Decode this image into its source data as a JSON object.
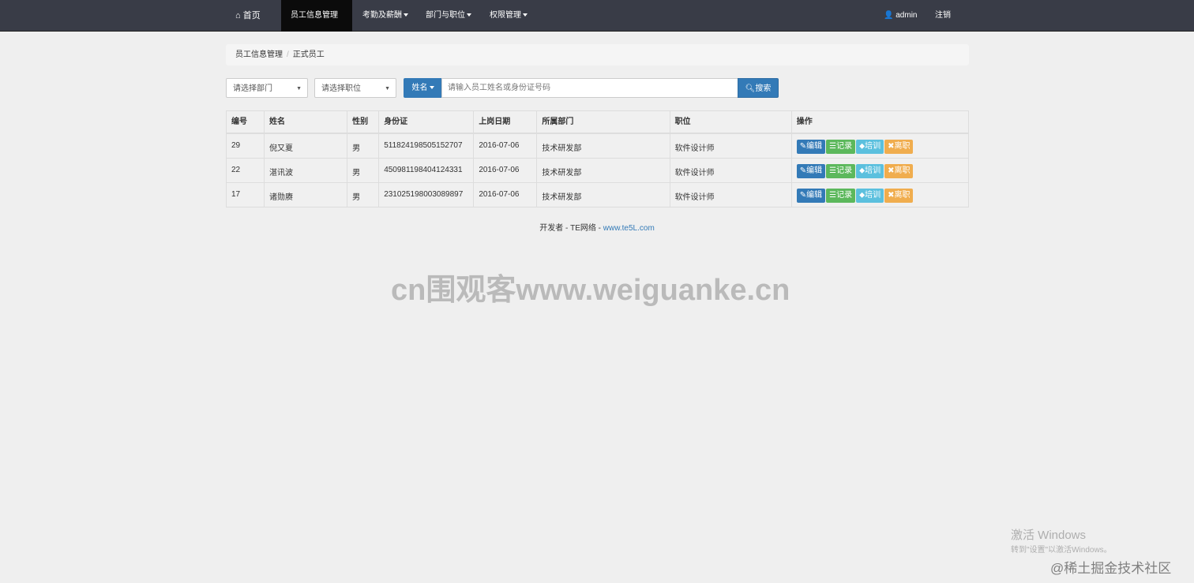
{
  "nav": {
    "home": "首页",
    "items": [
      {
        "label": "员工信息管理",
        "active": true
      },
      {
        "label": "考勤及薪酬"
      },
      {
        "label": "部门与职位"
      },
      {
        "label": "权限管理"
      }
    ],
    "user": "admin",
    "logout": "注销"
  },
  "breadcrumb": {
    "parent": "员工信息管理",
    "current": "正式员工"
  },
  "filters": {
    "department_placeholder": "请选择部门",
    "position_placeholder": "请选择职位",
    "search_type": "姓名",
    "search_placeholder": "请输入员工姓名或身份证号码",
    "search_button": "搜索"
  },
  "table": {
    "headers": [
      "编号",
      "姓名",
      "性别",
      "身份证",
      "上岗日期",
      "所属部门",
      "职位",
      "操作"
    ],
    "rows": [
      [
        "29",
        "倪又夏",
        "男",
        "511824198505152707",
        "2016-07-06",
        "技术研发部",
        "软件设计师"
      ],
      [
        "22",
        "湛讯波",
        "男",
        "450981198404124331",
        "2016-07-06",
        "技术研发部",
        "软件设计师"
      ],
      [
        "17",
        "诸勋赓",
        "男",
        "231025198003089897",
        "2016-07-06",
        "技术研发部",
        "软件设计师"
      ]
    ],
    "actions": [
      {
        "label": "编辑",
        "color": "#337ab7",
        "icon": "pencil-icon"
      },
      {
        "label": "记录",
        "color": "#5cb85c",
        "icon": "list-icon"
      },
      {
        "label": "培训",
        "color": "#5bc0de",
        "icon": "tag-icon"
      },
      {
        "label": "离职",
        "color": "#f0ad4e",
        "icon": "times-icon"
      }
    ]
  },
  "footer": {
    "text": "开发者 - TE网络 - ",
    "link": "www.te5L.com"
  },
  "watermarks": {
    "center": "cn围观客www.weiguanke.cn",
    "windows_title": "激活 Windows",
    "windows_sub": "转到\"设置\"以激活Windows。",
    "juejin": "@稀土掘金技术社区"
  }
}
